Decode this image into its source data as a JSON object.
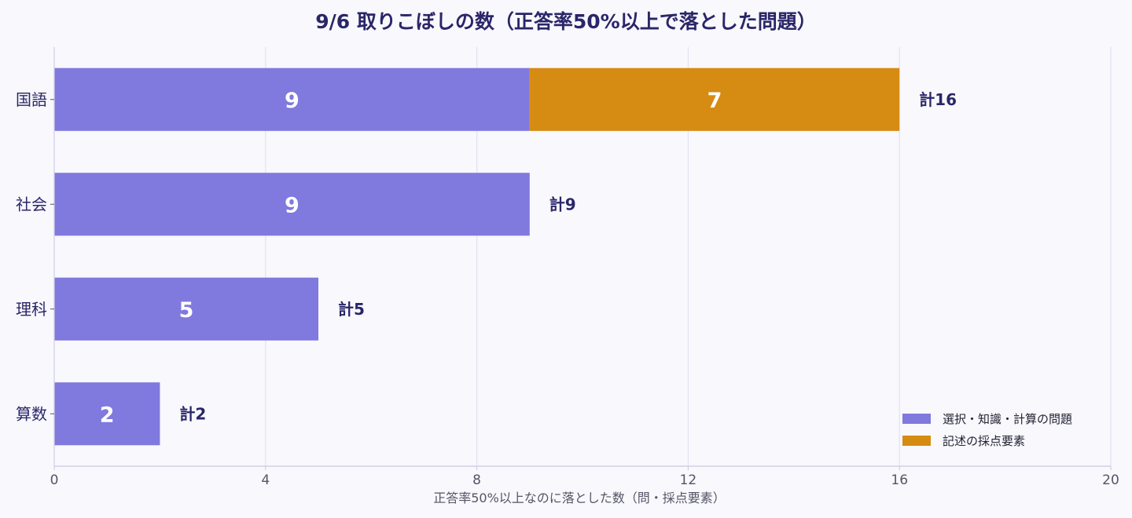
{
  "chart_data": {
    "type": "bar",
    "orientation": "horizontal",
    "stacked": true,
    "title": "9/6 取りこぼしの数（正答率50%以上で落とした問題）",
    "xlabel": "正答率50%以上なのに落とした数（問・採点要素）",
    "ylabel": "",
    "xlim": [
      0,
      20
    ],
    "xticks": [
      0,
      4,
      8,
      12,
      16,
      20
    ],
    "grid": true,
    "legend_position": "bottom-right",
    "categories": [
      "国語",
      "社会",
      "理科",
      "算数"
    ],
    "series": [
      {
        "name": "選択・知識・計算の問題",
        "values": [
          9,
          9,
          5,
          2
        ],
        "color": "#8079de"
      },
      {
        "name": "記述の採点要素",
        "values": [
          7,
          0,
          0,
          0
        ],
        "color": "#d68b12"
      }
    ],
    "totals": [
      "計16",
      "計9",
      "計5",
      "計2"
    ]
  }
}
